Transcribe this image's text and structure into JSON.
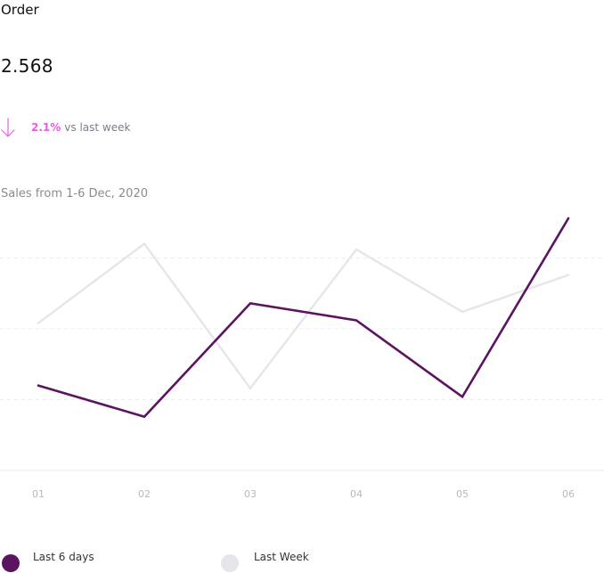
{
  "card": {
    "title": "Order",
    "value": "2.568",
    "trend": {
      "direction": "down",
      "percent": "2.1%",
      "comparison": "vs last week",
      "color": "#e55ee5"
    },
    "subtitle": "Sales from 1-6 Dec, 2020"
  },
  "chart_data": {
    "type": "line",
    "categories": [
      "01",
      "02",
      "03",
      "04",
      "05",
      "06"
    ],
    "ylim": [
      0,
      100
    ],
    "grid": true,
    "legend_position": "bottom-left",
    "series": [
      {
        "name": "Last 6 days",
        "color": "#5a1460",
        "values": [
          30,
          19,
          59,
          53,
          26,
          89
        ]
      },
      {
        "name": "Last Week",
        "color": "#e6e6ea",
        "values": [
          52,
          80,
          29,
          78,
          56,
          69
        ]
      }
    ]
  }
}
